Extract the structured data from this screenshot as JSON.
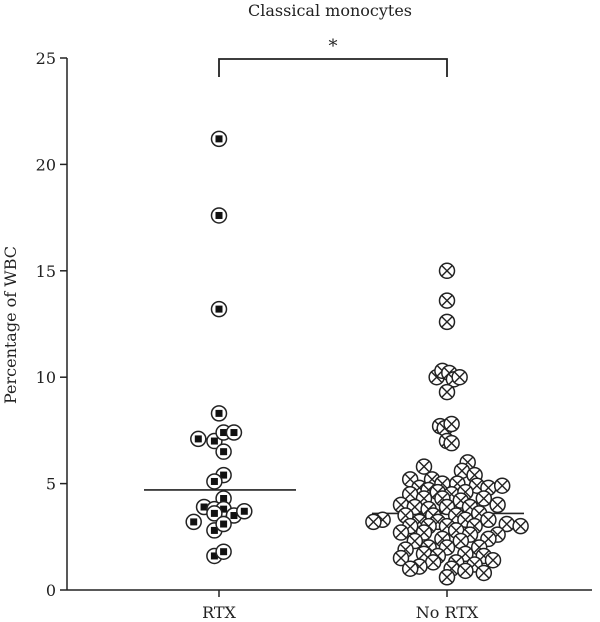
{
  "chart_data": {
    "type": "scatter",
    "title": "Classical monocytes",
    "ylabel": "Percentage of WBC",
    "xlabel": "",
    "ylim": [
      0,
      25
    ],
    "yticks": [
      "0",
      "5",
      "10",
      "15",
      "20",
      "25"
    ],
    "categories": [
      "RTX",
      "No RTX"
    ],
    "significance": "*",
    "series": [
      {
        "marker": "circled-square",
        "medianValue": 4.7,
        "points": [
          {
            "dx": 0,
            "y": 21.2
          },
          {
            "dx": 0,
            "y": 17.6
          },
          {
            "dx": 0,
            "y": 13.2
          },
          {
            "dx": 0,
            "y": 8.3
          },
          {
            "dx": -1.8,
            "y": 7.1
          },
          {
            "dx": -0.4,
            "y": 7.0
          },
          {
            "dx": 0.4,
            "y": 7.4
          },
          {
            "dx": 1.3,
            "y": 7.4
          },
          {
            "dx": 0.4,
            "y": 6.5
          },
          {
            "dx": 0.4,
            "y": 5.4
          },
          {
            "dx": -0.4,
            "y": 5.1
          },
          {
            "dx": 0.4,
            "y": 4.3
          },
          {
            "dx": -1.3,
            "y": 3.9
          },
          {
            "dx": -0.4,
            "y": 3.8
          },
          {
            "dx": 0.4,
            "y": 3.8
          },
          {
            "dx": 1.3,
            "y": 3.5
          },
          {
            "dx": 2.2,
            "y": 3.7
          },
          {
            "dx": -0.4,
            "y": 3.6
          },
          {
            "dx": -2.2,
            "y": 3.2
          },
          {
            "dx": -0.4,
            "y": 2.8
          },
          {
            "dx": 0.4,
            "y": 3.1
          },
          {
            "dx": -0.4,
            "y": 1.6
          },
          {
            "dx": 0.4,
            "y": 1.8
          }
        ]
      },
      {
        "marker": "circled-x",
        "medianValue": 3.6,
        "points": [
          {
            "dx": 0,
            "y": 15.0
          },
          {
            "dx": 0,
            "y": 13.6
          },
          {
            "dx": 0,
            "y": 12.6
          },
          {
            "dx": -0.9,
            "y": 10.0
          },
          {
            "dx": -0.4,
            "y": 10.3
          },
          {
            "dx": 0.2,
            "y": 10.2
          },
          {
            "dx": 0.6,
            "y": 9.9
          },
          {
            "dx": 1.1,
            "y": 10.0
          },
          {
            "dx": 0,
            "y": 9.3
          },
          {
            "dx": -0.6,
            "y": 7.7
          },
          {
            "dx": -0.2,
            "y": 7.6
          },
          {
            "dx": 0.4,
            "y": 7.8
          },
          {
            "dx": 0,
            "y": 7.0
          },
          {
            "dx": 0.4,
            "y": 6.9
          },
          {
            "dx": 1.8,
            "y": 6.0
          },
          {
            "dx": -2.0,
            "y": 5.8
          },
          {
            "dx": 1.3,
            "y": 5.6
          },
          {
            "dx": -1.3,
            "y": 5.2
          },
          {
            "dx": 2.4,
            "y": 5.4
          },
          {
            "dx": -3.2,
            "y": 5.2
          },
          {
            "dx": -0.4,
            "y": 5.0
          },
          {
            "dx": 0.9,
            "y": 5.0
          },
          {
            "dx": -2.4,
            "y": 4.8
          },
          {
            "dx": -1.6,
            "y": 4.7
          },
          {
            "dx": 2.6,
            "y": 4.9
          },
          {
            "dx": 3.6,
            "y": 4.8
          },
          {
            "dx": 4.8,
            "y": 4.9
          },
          {
            "dx": -3.2,
            "y": 4.5
          },
          {
            "dx": -0.8,
            "y": 4.6
          },
          {
            "dx": 0.4,
            "y": 4.5
          },
          {
            "dx": 1.6,
            "y": 4.6
          },
          {
            "dx": -2.0,
            "y": 4.3
          },
          {
            "dx": -0.4,
            "y": 4.3
          },
          {
            "dx": 1.2,
            "y": 4.2
          },
          {
            "dx": 3.2,
            "y": 4.3
          },
          {
            "dx": -4.0,
            "y": 4.0
          },
          {
            "dx": -2.8,
            "y": 3.9
          },
          {
            "dx": -1.6,
            "y": 3.8
          },
          {
            "dx": 0,
            "y": 3.9
          },
          {
            "dx": 2.0,
            "y": 3.9
          },
          {
            "dx": 4.4,
            "y": 4.0
          },
          {
            "dx": -3.6,
            "y": 3.5
          },
          {
            "dx": -1.2,
            "y": 3.5
          },
          {
            "dx": 0.8,
            "y": 3.5
          },
          {
            "dx": 2.8,
            "y": 3.6
          },
          {
            "dx": -5.6,
            "y": 3.3
          },
          {
            "dx": -6.4,
            "y": 3.2
          },
          {
            "dx": -2.4,
            "y": 3.2
          },
          {
            "dx": -0.8,
            "y": 3.2
          },
          {
            "dx": 1.6,
            "y": 3.3
          },
          {
            "dx": 3.6,
            "y": 3.3
          },
          {
            "dx": -3.2,
            "y": 3.0
          },
          {
            "dx": -1.6,
            "y": 3.0
          },
          {
            "dx": 0,
            "y": 3.0
          },
          {
            "dx": 2.4,
            "y": 3.0
          },
          {
            "dx": 5.2,
            "y": 3.1
          },
          {
            "dx": 6.4,
            "y": 3.0
          },
          {
            "dx": -4.0,
            "y": 2.7
          },
          {
            "dx": -2.0,
            "y": 2.7
          },
          {
            "dx": 0.8,
            "y": 2.8
          },
          {
            "dx": 2.0,
            "y": 2.6
          },
          {
            "dx": 4.4,
            "y": 2.6
          },
          {
            "dx": -2.8,
            "y": 2.3
          },
          {
            "dx": -0.4,
            "y": 2.4
          },
          {
            "dx": 1.2,
            "y": 2.3
          },
          {
            "dx": 3.6,
            "y": 2.4
          },
          {
            "dx": -1.6,
            "y": 2.0
          },
          {
            "dx": 0,
            "y": 2.0
          },
          {
            "dx": 2.8,
            "y": 2.0
          },
          {
            "dx": -3.6,
            "y": 1.9
          },
          {
            "dx": -2.0,
            "y": 1.7
          },
          {
            "dx": -0.8,
            "y": 1.6
          },
          {
            "dx": 1.6,
            "y": 1.7
          },
          {
            "dx": 3.2,
            "y": 1.6
          },
          {
            "dx": -4.0,
            "y": 1.5
          },
          {
            "dx": -1.2,
            "y": 1.3
          },
          {
            "dx": 0.8,
            "y": 1.3
          },
          {
            "dx": 2.4,
            "y": 1.2
          },
          {
            "dx": 4.0,
            "y": 1.4
          },
          {
            "dx": -2.4,
            "y": 1.1
          },
          {
            "dx": -3.2,
            "y": 1.0
          },
          {
            "dx": 0.4,
            "y": 1.0
          },
          {
            "dx": 1.6,
            "y": 0.9
          },
          {
            "dx": 3.2,
            "y": 0.8
          },
          {
            "dx": 0,
            "y": 0.6
          }
        ]
      }
    ]
  }
}
